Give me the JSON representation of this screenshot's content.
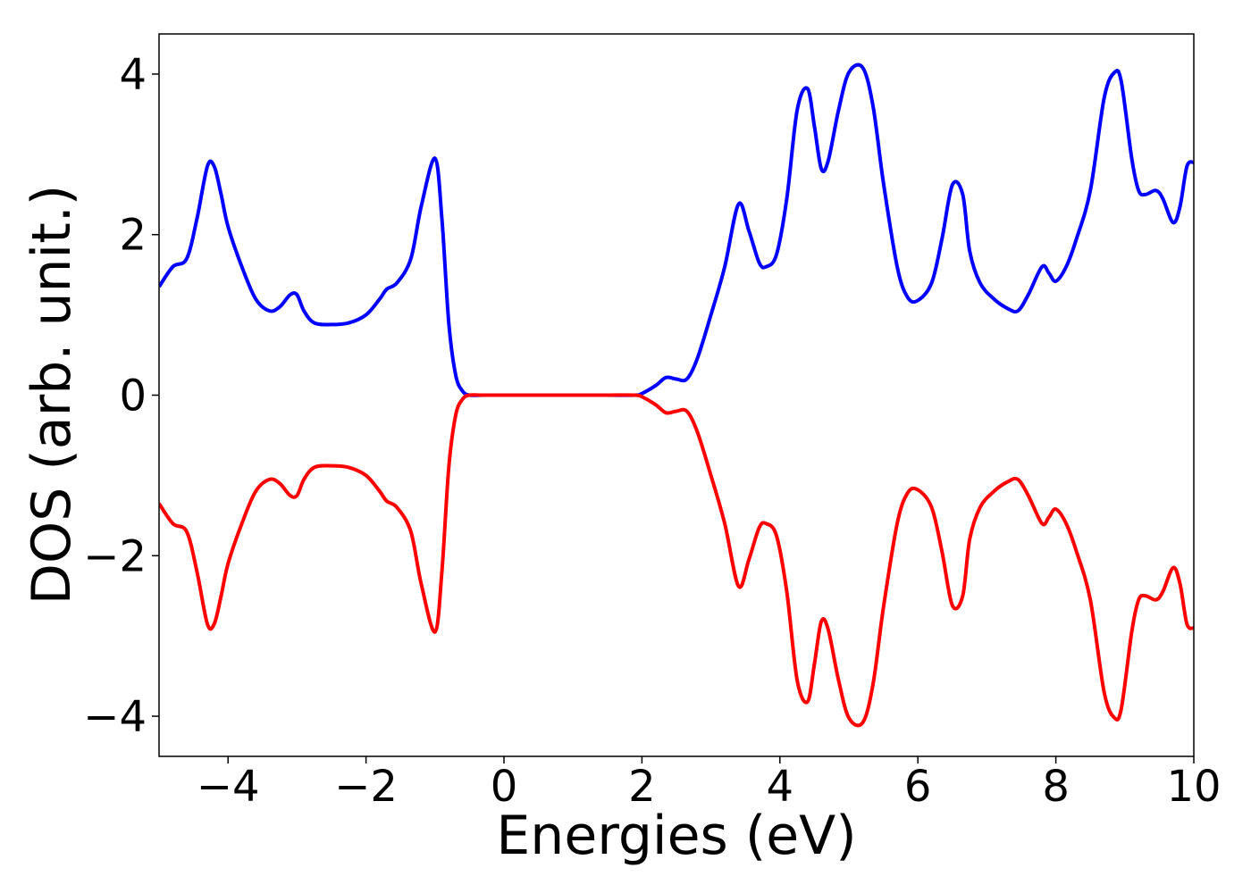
{
  "chart_data": {
    "type": "line",
    "title": "",
    "xlabel": "Energies (eV)",
    "ylabel": "DOS (arb. unit.)",
    "xlim": [
      -5,
      10
    ],
    "ylim": [
      -4.5,
      4.5
    ],
    "grid": false,
    "xticks": [
      -4,
      -2,
      0,
      2,
      4,
      6,
      8,
      10
    ],
    "yticks": [
      -4,
      -2,
      0,
      2,
      4
    ],
    "xtick_labels": [
      "−4",
      "−2",
      "0",
      "2",
      "4",
      "6",
      "8",
      "10"
    ],
    "ytick_labels": [
      "−4",
      "−2",
      "0",
      "2",
      "4"
    ],
    "series": [
      {
        "color": "#0000ff",
        "x": [
          -5.0,
          -4.8,
          -4.6,
          -4.45,
          -4.3,
          -4.2,
          -4.1,
          -4.0,
          -3.8,
          -3.6,
          -3.4,
          -3.25,
          -3.1,
          -3.0,
          -2.9,
          -2.75,
          -2.5,
          -2.25,
          -2.0,
          -1.8,
          -1.7,
          -1.55,
          -1.35,
          -1.2,
          -1.0,
          -0.9,
          -0.8,
          -0.7,
          -0.6,
          -0.5,
          -0.3,
          0.0,
          0.5,
          1.0,
          1.5,
          1.9,
          2.0,
          2.2,
          2.35,
          2.5,
          2.65,
          2.8,
          3.0,
          3.2,
          3.4,
          3.55,
          3.7,
          3.8,
          3.95,
          4.1,
          4.25,
          4.4,
          4.5,
          4.6,
          4.7,
          4.85,
          5.0,
          5.2,
          5.35,
          5.5,
          5.7,
          5.85,
          6.0,
          6.2,
          6.35,
          6.5,
          6.65,
          6.75,
          6.9,
          7.1,
          7.3,
          7.45,
          7.6,
          7.8,
          7.9,
          8.0,
          8.15,
          8.3,
          8.5,
          8.7,
          8.85,
          8.95,
          9.1,
          9.2,
          9.3,
          9.45,
          9.55,
          9.7,
          9.8,
          9.9,
          10.0
        ],
        "y": [
          1.35,
          1.6,
          1.7,
          2.2,
          2.85,
          2.85,
          2.5,
          2.1,
          1.6,
          1.2,
          1.05,
          1.1,
          1.25,
          1.25,
          1.05,
          0.9,
          0.88,
          0.9,
          1.0,
          1.2,
          1.32,
          1.4,
          1.7,
          2.35,
          2.95,
          2.2,
          0.9,
          0.25,
          0.05,
          0.0,
          0.0,
          0.0,
          0.0,
          0.0,
          0.0,
          0.0,
          0.02,
          0.12,
          0.22,
          0.2,
          0.2,
          0.45,
          1.0,
          1.6,
          2.38,
          2.05,
          1.65,
          1.6,
          1.75,
          2.45,
          3.55,
          3.82,
          3.35,
          2.82,
          2.92,
          3.55,
          4.02,
          4.08,
          3.6,
          2.65,
          1.6,
          1.22,
          1.18,
          1.4,
          1.95,
          2.62,
          2.5,
          1.8,
          1.4,
          1.2,
          1.08,
          1.05,
          1.25,
          1.6,
          1.52,
          1.42,
          1.6,
          1.95,
          2.55,
          3.7,
          4.02,
          3.9,
          2.95,
          2.55,
          2.5,
          2.55,
          2.45,
          2.15,
          2.35,
          2.85,
          2.9
        ]
      },
      {
        "color": "#ff0000",
        "x": [
          -5.0,
          -4.8,
          -4.6,
          -4.45,
          -4.3,
          -4.2,
          -4.1,
          -4.0,
          -3.8,
          -3.6,
          -3.4,
          -3.25,
          -3.1,
          -3.0,
          -2.9,
          -2.75,
          -2.5,
          -2.25,
          -2.0,
          -1.8,
          -1.7,
          -1.55,
          -1.35,
          -1.2,
          -1.0,
          -0.9,
          -0.8,
          -0.7,
          -0.6,
          -0.5,
          -0.3,
          0.0,
          0.5,
          1.0,
          1.5,
          1.9,
          2.0,
          2.2,
          2.35,
          2.5,
          2.65,
          2.8,
          3.0,
          3.2,
          3.4,
          3.55,
          3.7,
          3.8,
          3.95,
          4.1,
          4.25,
          4.4,
          4.5,
          4.6,
          4.7,
          4.85,
          5.0,
          5.2,
          5.35,
          5.5,
          5.7,
          5.85,
          6.0,
          6.2,
          6.35,
          6.5,
          6.65,
          6.75,
          6.9,
          7.1,
          7.3,
          7.45,
          7.6,
          7.8,
          7.9,
          8.0,
          8.15,
          8.3,
          8.5,
          8.7,
          8.85,
          8.95,
          9.1,
          9.2,
          9.3,
          9.45,
          9.55,
          9.7,
          9.8,
          9.9,
          10.0
        ],
        "y": [
          -1.35,
          -1.6,
          -1.7,
          -2.2,
          -2.85,
          -2.85,
          -2.5,
          -2.1,
          -1.6,
          -1.2,
          -1.05,
          -1.1,
          -1.25,
          -1.25,
          -1.05,
          -0.9,
          -0.88,
          -0.9,
          -1.0,
          -1.2,
          -1.32,
          -1.4,
          -1.7,
          -2.35,
          -2.95,
          -2.2,
          -0.9,
          -0.25,
          -0.05,
          0.0,
          0.0,
          0.0,
          0.0,
          0.0,
          0.0,
          0.0,
          -0.02,
          -0.12,
          -0.22,
          -0.2,
          -0.2,
          -0.45,
          -1.0,
          -1.6,
          -2.38,
          -2.05,
          -1.65,
          -1.6,
          -1.75,
          -2.45,
          -3.55,
          -3.82,
          -3.35,
          -2.82,
          -2.92,
          -3.55,
          -4.02,
          -4.08,
          -3.6,
          -2.65,
          -1.6,
          -1.22,
          -1.18,
          -1.4,
          -1.95,
          -2.62,
          -2.5,
          -1.8,
          -1.4,
          -1.2,
          -1.08,
          -1.05,
          -1.25,
          -1.6,
          -1.52,
          -1.42,
          -1.6,
          -1.95,
          -2.55,
          -3.7,
          -4.02,
          -3.9,
          -2.95,
          -2.55,
          -2.5,
          -2.55,
          -2.45,
          -2.15,
          -2.35,
          -2.85,
          -2.9
        ]
      }
    ]
  }
}
